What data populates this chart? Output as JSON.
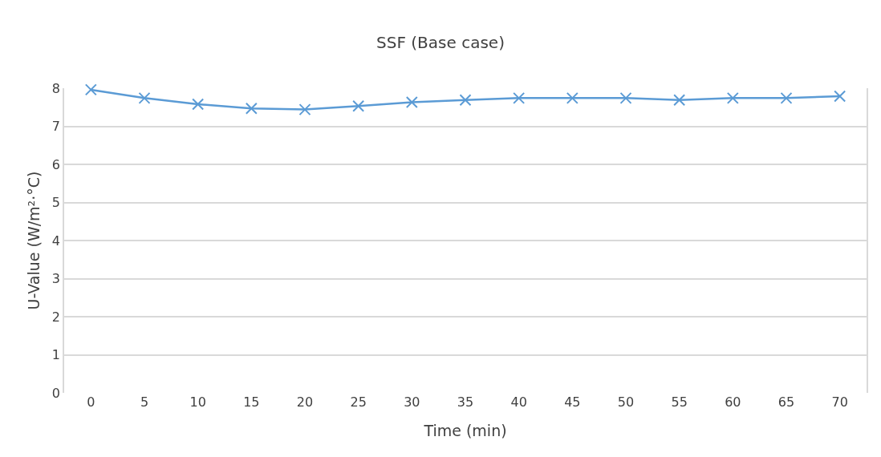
{
  "chart_data": {
    "type": "line",
    "title": "SSF (Base case)",
    "xlabel": "Time (min)",
    "ylabel": "U-Value (W/m²·°C)",
    "categories": [
      "0",
      "5",
      "10",
      "15",
      "20",
      "25",
      "30",
      "35",
      "40",
      "45",
      "50",
      "55",
      "60",
      "65",
      "70"
    ],
    "series": [
      {
        "color": "#5b9bd5",
        "values": [
          7.96,
          7.74,
          7.58,
          7.47,
          7.44,
          7.53,
          7.63,
          7.69,
          7.74,
          7.74,
          7.74,
          7.69,
          7.74,
          7.74,
          7.79
        ]
      }
    ],
    "ylim": [
      0,
      8
    ],
    "yticks": [
      0,
      1,
      2,
      3,
      4,
      5,
      6,
      7,
      8
    ],
    "grid": "y",
    "marker": "cross",
    "line_style": "solid"
  }
}
